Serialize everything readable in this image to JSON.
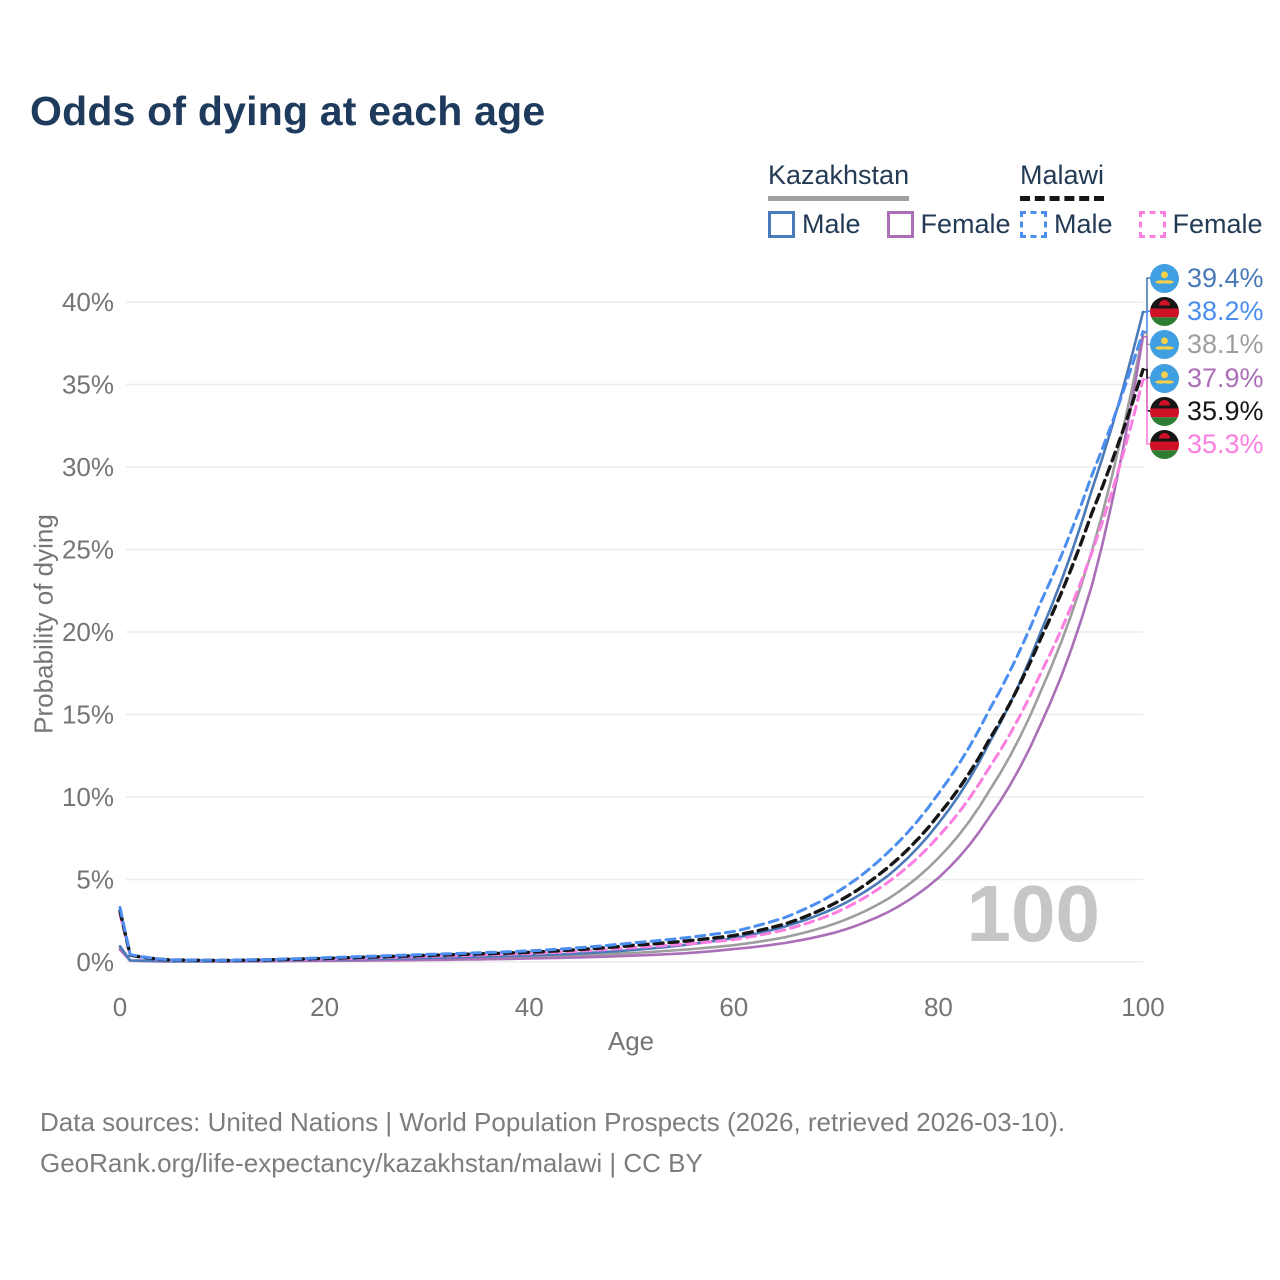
{
  "title": "Odds of dying at each age",
  "watermark_age": "100",
  "legend": {
    "groups": [
      {
        "country": "Kazakhstan",
        "line_style": "solid",
        "items": [
          {
            "label": "Male",
            "series": "kz_male"
          },
          {
            "label": "Female",
            "series": "kz_female"
          }
        ]
      },
      {
        "country": "Malawi",
        "line_style": "dashed",
        "items": [
          {
            "label": "Male",
            "series": "ml_male"
          },
          {
            "label": "Female",
            "series": "ml_female"
          }
        ]
      }
    ]
  },
  "axes": {
    "x_label": "Age",
    "y_label": "Probability of dying",
    "x_ticks": [
      "0",
      "20",
      "40",
      "60",
      "80",
      "100"
    ],
    "y_ticks": [
      "0%",
      "5%",
      "10%",
      "15%",
      "20%",
      "25%",
      "30%",
      "35%",
      "40%"
    ]
  },
  "colors": {
    "title_text": "#1e3a5c",
    "legend_text": "#243b55",
    "axis_text": "#757575",
    "grid": "#ececec",
    "watermark": "#c6c6c6",
    "kazakhstan_underline": "#a0a0a0",
    "malawi_underline": "#161616"
  },
  "footer": {
    "line1": "Data sources: United Nations | World Population Prospects (2026, retrieved 2026-03-10).",
    "line2": "GeoRank.org/life-expectancy/kazakhstan/malawi | CC BY"
  },
  "chart_data": {
    "type": "line",
    "title": "Odds of dying at each age",
    "xlabel": "Age",
    "ylabel": "Probability of dying",
    "xlim": [
      0,
      100
    ],
    "ylim": [
      0,
      40
    ],
    "grid": "horizontal-only",
    "legend_position": "top-right",
    "ages": [
      0,
      1,
      5,
      10,
      15,
      20,
      25,
      30,
      35,
      40,
      45,
      50,
      55,
      60,
      65,
      70,
      75,
      80,
      85,
      90,
      95,
      100
    ],
    "series": [
      {
        "id": "kz_male",
        "country": "Kazakhstan",
        "sex": "Male",
        "line_style": "solid",
        "color": "#4a7ab8",
        "end_label": "39.4%",
        "values": [
          0.95,
          0.1,
          0.05,
          0.05,
          0.09,
          0.15,
          0.19,
          0.25,
          0.32,
          0.4,
          0.52,
          0.72,
          1.02,
          1.45,
          2.15,
          3.3,
          5.2,
          8.4,
          13.3,
          20.0,
          28.6,
          39.4
        ]
      },
      {
        "id": "kz_female",
        "country": "Kazakhstan",
        "sex": "Female",
        "line_style": "solid",
        "color": "#ab6fb8",
        "end_label": "37.9%",
        "values": [
          0.75,
          0.08,
          0.03,
          0.03,
          0.05,
          0.07,
          0.09,
          0.12,
          0.16,
          0.21,
          0.28,
          0.38,
          0.52,
          0.78,
          1.15,
          1.8,
          3.0,
          5.1,
          8.8,
          14.4,
          22.8,
          37.9
        ]
      },
      {
        "id": "kz_total",
        "country": "Kazakhstan",
        "sex": "Both",
        "line_style": "solid",
        "color": "#9e9e9e",
        "end_label": "38.1%",
        "values": [
          0.85,
          0.09,
          0.04,
          0.04,
          0.07,
          0.11,
          0.14,
          0.18,
          0.24,
          0.3,
          0.4,
          0.54,
          0.74,
          1.02,
          1.5,
          2.35,
          3.8,
          6.3,
          10.4,
          16.4,
          24.9,
          38.1
        ]
      },
      {
        "id": "ml_male",
        "country": "Malawi",
        "sex": "Male",
        "line_style": "dashed",
        "color": "#4b8ef0",
        "end_label": "38.2%",
        "values": [
          3.3,
          0.45,
          0.13,
          0.1,
          0.16,
          0.26,
          0.36,
          0.46,
          0.56,
          0.67,
          0.87,
          1.15,
          1.45,
          1.85,
          2.7,
          4.2,
          6.6,
          10.2,
          15.3,
          21.8,
          29.5,
          38.2
        ]
      },
      {
        "id": "ml_female",
        "country": "Malawi",
        "sex": "Female",
        "line_style": "dashed",
        "color": "#fb7ee0",
        "end_label": "35.3%",
        "values": [
          2.9,
          0.4,
          0.11,
          0.08,
          0.12,
          0.18,
          0.26,
          0.34,
          0.42,
          0.51,
          0.66,
          0.86,
          1.07,
          1.35,
          1.95,
          3.0,
          4.8,
          7.6,
          11.8,
          17.5,
          24.8,
          35.3
        ]
      },
      {
        "id": "ml_total",
        "country": "Malawi",
        "sex": "Both",
        "line_style": "dashed",
        "color": "#161616",
        "end_label": "35.9%",
        "values": [
          3.1,
          0.42,
          0.12,
          0.09,
          0.14,
          0.22,
          0.31,
          0.4,
          0.49,
          0.59,
          0.76,
          1.0,
          1.25,
          1.6,
          2.3,
          3.6,
          5.7,
          8.9,
          13.5,
          19.6,
          27.2,
          35.9
        ]
      }
    ],
    "end_labels": [
      {
        "series": "kz_male",
        "text": "39.4%"
      },
      {
        "series": "ml_male",
        "text": "38.2%"
      },
      {
        "series": "kz_total",
        "text": "38.1%"
      },
      {
        "series": "kz_female",
        "text": "37.9%"
      },
      {
        "series": "ml_total",
        "text": "35.9%"
      },
      {
        "series": "ml_female",
        "text": "35.3%"
      }
    ]
  }
}
